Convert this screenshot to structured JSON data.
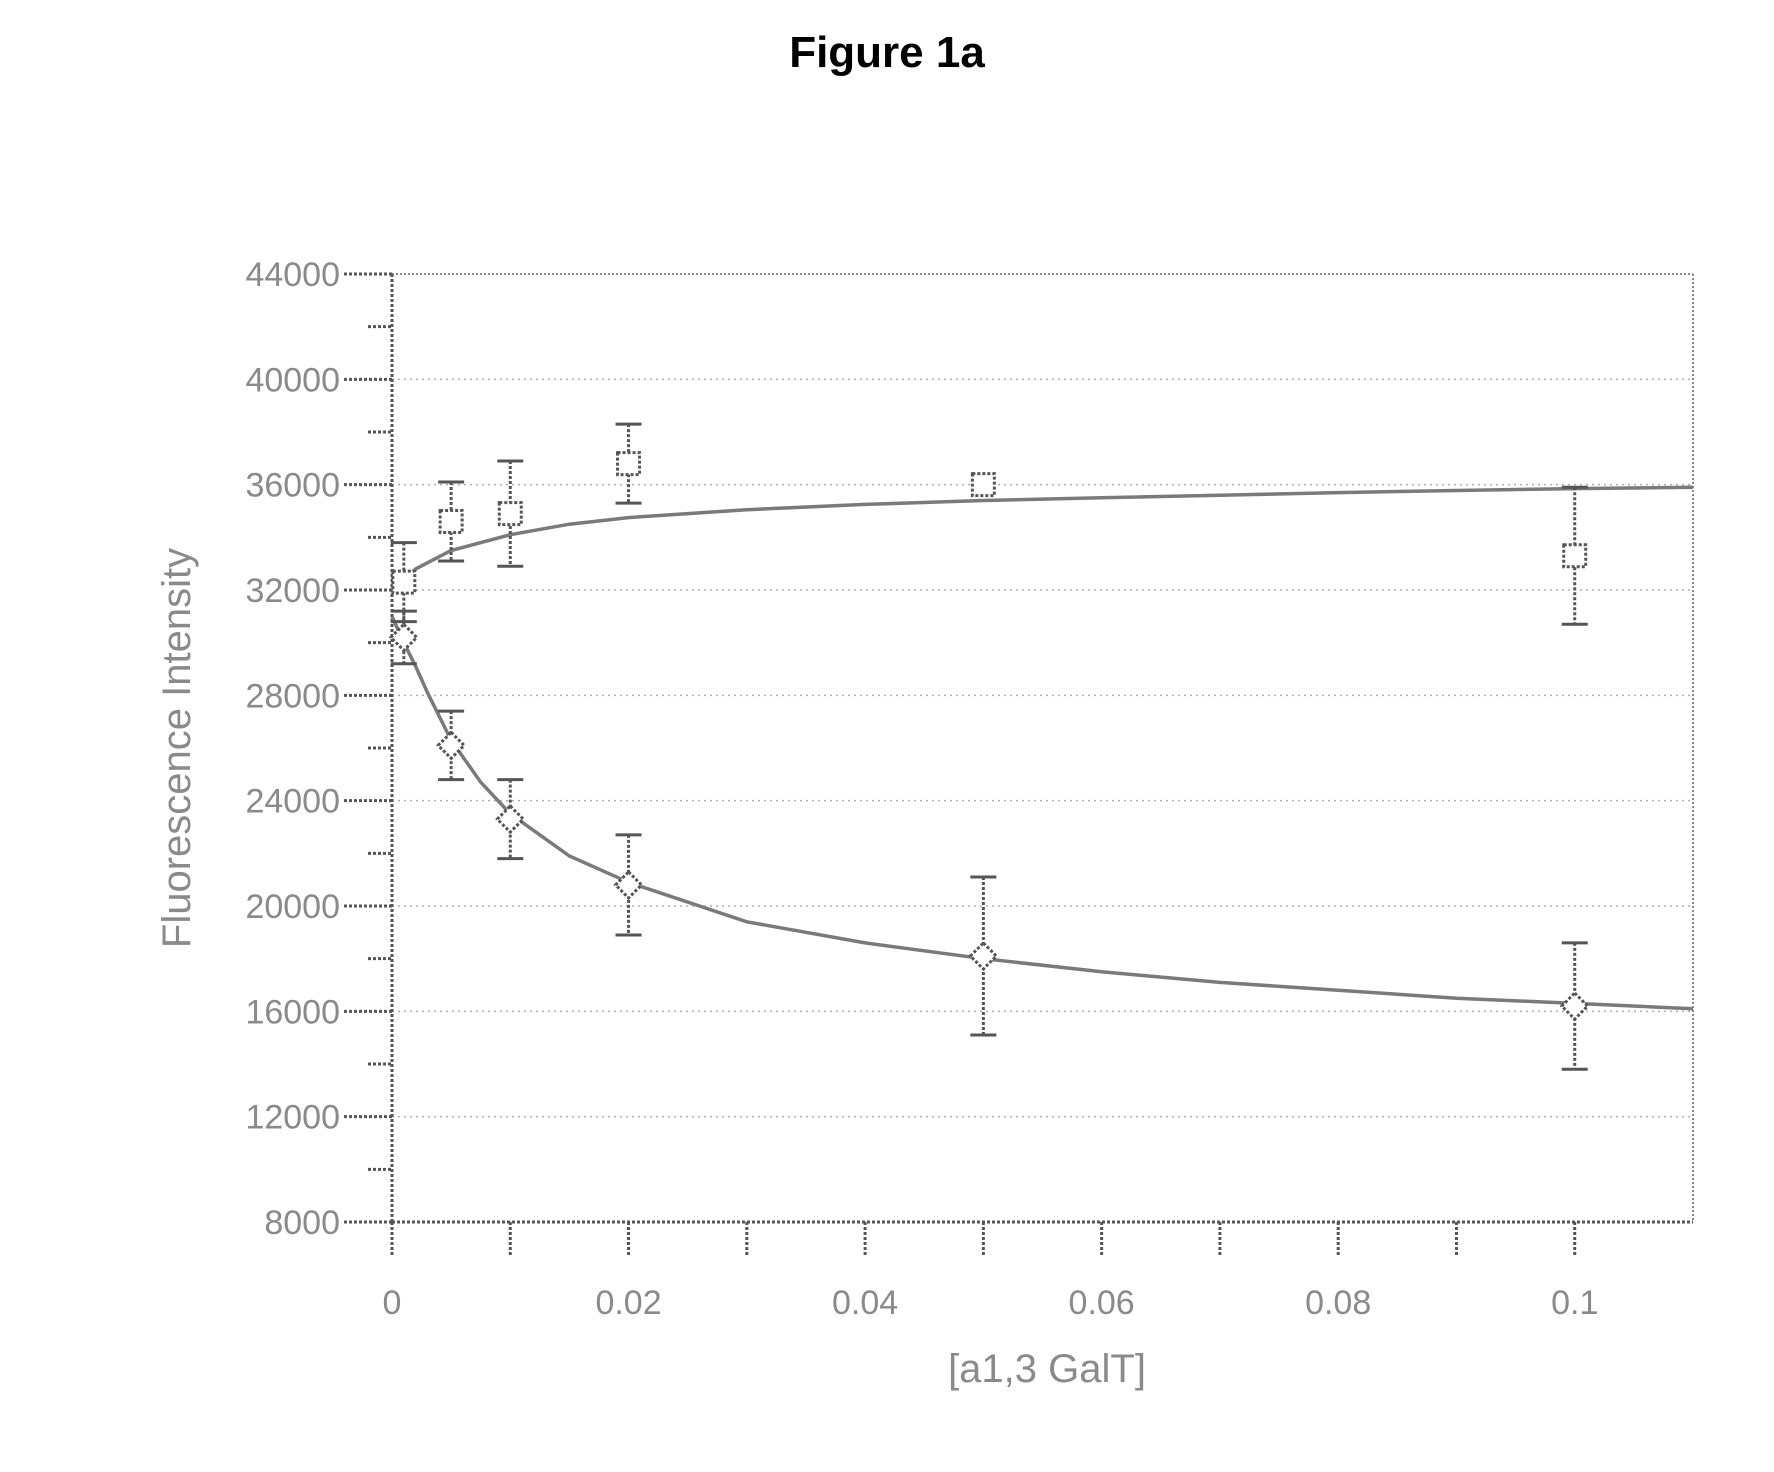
{
  "figure": {
    "title": "Figure 1a"
  },
  "chart_data": {
    "type": "scatter",
    "title": "Figure 1a",
    "xlabel": "[a1,3 GalT]",
    "ylabel": "Fluorescence Intensity",
    "xlim": [
      0,
      0.11
    ],
    "ylim": [
      8000,
      44000
    ],
    "x_ticks": [
      0,
      0.02,
      0.04,
      0.06,
      0.08,
      0.1
    ],
    "x_tick_labels": [
      "0",
      "0.02",
      "0.04",
      "0.06",
      "0.08",
      "0.1"
    ],
    "y_ticks": [
      8000,
      12000,
      16000,
      20000,
      24000,
      28000,
      32000,
      36000,
      40000,
      44000
    ],
    "y_tick_labels": [
      "8000",
      "12000",
      "16000",
      "20000",
      "24000",
      "28000",
      "32000",
      "36000",
      "40000",
      "44000"
    ],
    "grid": true,
    "series": [
      {
        "marker": "square",
        "points": [
          {
            "x": 0.001,
            "y": 32300,
            "err": 1500
          },
          {
            "x": 0.005,
            "y": 34600,
            "err": 1500
          },
          {
            "x": 0.01,
            "y": 34900,
            "err": 2000
          },
          {
            "x": 0.02,
            "y": 36800,
            "err": 1500
          },
          {
            "x": 0.05,
            "y": 36000,
            "err": 0
          },
          {
            "x": 0.1,
            "y": 33300,
            "err": 2600
          }
        ],
        "fit_x": [
          0,
          0.002,
          0.005,
          0.01,
          0.015,
          0.02,
          0.03,
          0.04,
          0.05,
          0.06,
          0.07,
          0.08,
          0.09,
          0.1,
          0.11
        ],
        "fit_y": [
          31900,
          32800,
          33500,
          34100,
          34500,
          34750,
          35050,
          35250,
          35400,
          35500,
          35600,
          35700,
          35780,
          35850,
          35900
        ]
      },
      {
        "marker": "diamond",
        "points": [
          {
            "x": 0.001,
            "y": 30200,
            "err": 1000
          },
          {
            "x": 0.005,
            "y": 26100,
            "err": 1300
          },
          {
            "x": 0.01,
            "y": 23300,
            "err": 1500
          },
          {
            "x": 0.02,
            "y": 20800,
            "err": 1900
          },
          {
            "x": 0.05,
            "y": 18100,
            "err": 3000
          },
          {
            "x": 0.1,
            "y": 16200,
            "err": 2400
          }
        ],
        "fit_x": [
          0,
          0.001,
          0.002,
          0.003,
          0.005,
          0.0075,
          0.01,
          0.015,
          0.02,
          0.03,
          0.04,
          0.05,
          0.06,
          0.07,
          0.08,
          0.09,
          0.1,
          0.11
        ],
        "fit_y": [
          31000,
          30000,
          29100,
          28100,
          26300,
          24700,
          23500,
          21900,
          20900,
          19400,
          18600,
          18000,
          17500,
          17100,
          16800,
          16500,
          16300,
          16100
        ]
      }
    ]
  }
}
